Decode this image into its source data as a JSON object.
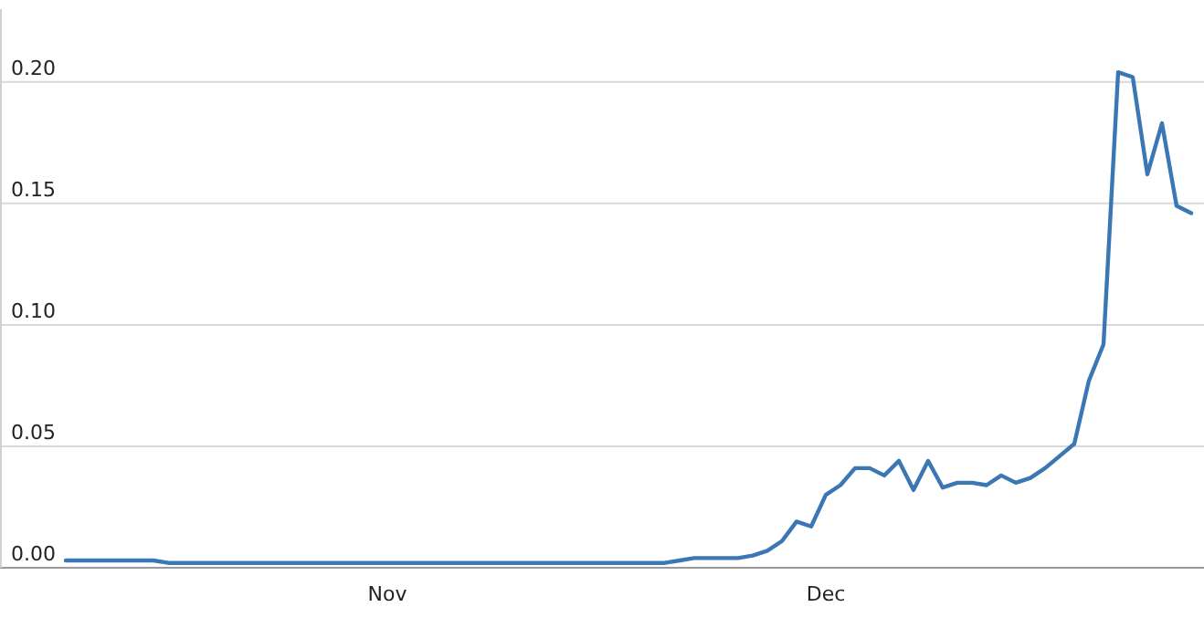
{
  "chart_data": {
    "type": "line",
    "categories": [
      null,
      null,
      null,
      null,
      null,
      null,
      null,
      null,
      null,
      null,
      null,
      null,
      null,
      null,
      null,
      null,
      null,
      null,
      null,
      null,
      null,
      null,
      null,
      null,
      null,
      null,
      "Nov",
      null,
      null,
      null,
      null,
      null,
      null,
      null,
      null,
      null,
      null,
      null,
      null,
      null,
      null,
      null,
      null,
      null,
      null,
      null,
      null,
      null,
      null,
      null,
      null,
      null,
      null,
      null,
      null,
      null,
      "Dec",
      null,
      null,
      null,
      null,
      null,
      null,
      null,
      null,
      null,
      null,
      null,
      null,
      null,
      null,
      null,
      null,
      null,
      null,
      null,
      null,
      null,
      null,
      null,
      null,
      null
    ],
    "series": [
      {
        "color": "#3a77b4",
        "values": [
          null,
          null,
          null,
          null,
          0.003,
          0.003,
          0.003,
          0.003,
          0.003,
          0.003,
          0.003,
          0.002,
          0.002,
          0.002,
          0.002,
          0.002,
          0.002,
          0.002,
          0.002,
          0.002,
          0.002,
          0.002,
          0.002,
          0.002,
          0.002,
          0.002,
          0.002,
          0.002,
          0.002,
          0.002,
          0.002,
          0.002,
          0.002,
          0.002,
          0.002,
          0.002,
          0.002,
          0.002,
          0.002,
          0.002,
          0.002,
          0.002,
          0.002,
          0.002,
          0.002,
          0.002,
          0.003,
          0.004,
          0.004,
          0.004,
          0.004,
          0.005,
          0.007,
          0.011,
          0.019,
          0.017,
          0.03,
          0.034,
          0.041,
          0.041,
          0.038,
          0.044,
          0.032,
          0.044,
          0.033,
          0.035,
          0.035,
          0.034,
          0.038,
          0.035,
          0.037,
          0.041,
          0.046,
          0.051,
          0.077,
          0.092,
          0.204,
          0.202,
          0.162,
          0.183,
          0.149,
          0.146
        ]
      }
    ],
    "ylim": [
      0,
      0.23
    ],
    "yticks": [
      {
        "value": 0,
        "label": "0.00"
      },
      {
        "value": 0.05,
        "label": "0.05"
      },
      {
        "value": 0.1,
        "label": "0.10"
      },
      {
        "value": 0.15,
        "label": "0.15"
      },
      {
        "value": 0.2,
        "label": "0.20"
      }
    ],
    "grid": "y",
    "marker": "none",
    "line_style": "solid"
  }
}
